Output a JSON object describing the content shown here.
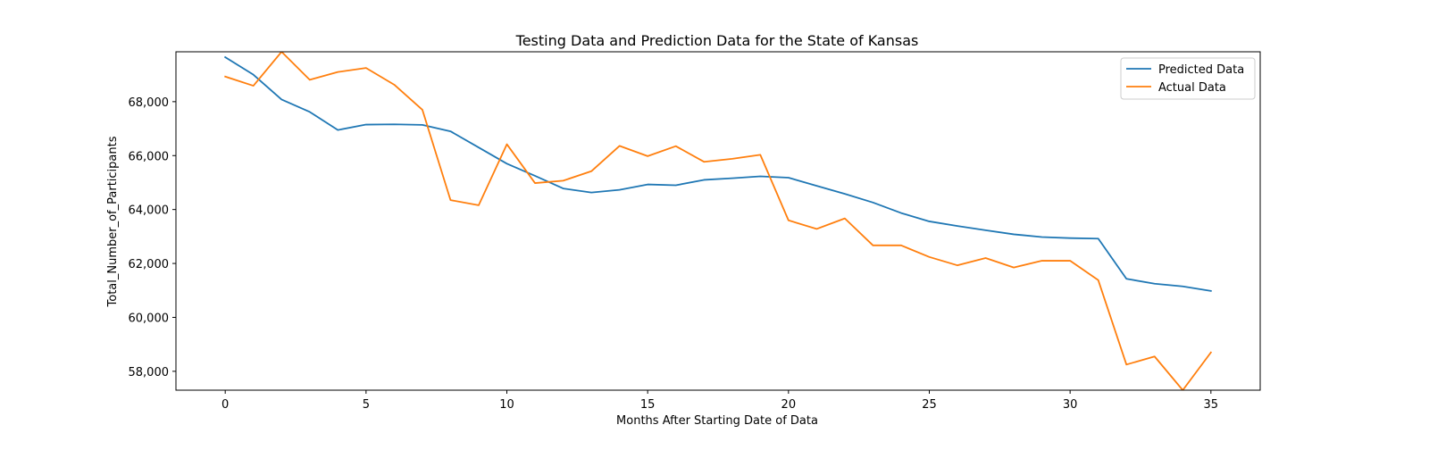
{
  "chart_data": {
    "type": "line",
    "title": "Testing Data and Prediction Data for the State of Kansas",
    "xlabel": "Months After Starting Date of Data",
    "ylabel": "Total_Number_of_Participants",
    "xlim": [
      -1.75,
      36.75
    ],
    "ylim": [
      57300,
      69850
    ],
    "xticks": [
      0,
      5,
      10,
      15,
      20,
      25,
      30,
      35
    ],
    "yticks": [
      58000,
      60000,
      62000,
      64000,
      66000,
      68000
    ],
    "yticklabels": [
      "58,000",
      "60,000",
      "62,000",
      "64,000",
      "66,000",
      "68,000"
    ],
    "grid": false,
    "legend_position": "top-right",
    "x": [
      0,
      1,
      2,
      3,
      4,
      5,
      6,
      7,
      8,
      9,
      10,
      11,
      12,
      13,
      14,
      15,
      16,
      17,
      18,
      19,
      20,
      21,
      22,
      23,
      24,
      25,
      26,
      27,
      28,
      29,
      30,
      31,
      32,
      33,
      34,
      35
    ],
    "series": [
      {
        "name": "Predicted Data",
        "color": "#1f77b4",
        "values": [
          69650,
          69000,
          68080,
          67620,
          66950,
          67150,
          67160,
          67140,
          66900,
          66300,
          65700,
          65250,
          64780,
          64630,
          64730,
          64930,
          64900,
          65100,
          65160,
          65230,
          65180,
          64880,
          64580,
          64260,
          63870,
          63560,
          63390,
          63230,
          63080,
          62980,
          62940,
          62920,
          61430,
          61250,
          61150,
          60980
        ]
      },
      {
        "name": "Actual Data",
        "color": "#ff7f0e",
        "values": [
          68930,
          68590,
          69850,
          68810,
          69100,
          69250,
          68630,
          67700,
          64350,
          64160,
          66420,
          64980,
          65070,
          65420,
          66360,
          65980,
          66350,
          65770,
          65880,
          66030,
          63600,
          63280,
          63670,
          62670,
          62670,
          62240,
          61930,
          62200,
          61850,
          62100,
          62100,
          61380,
          58250,
          58550,
          57300,
          58700
        ]
      }
    ]
  }
}
